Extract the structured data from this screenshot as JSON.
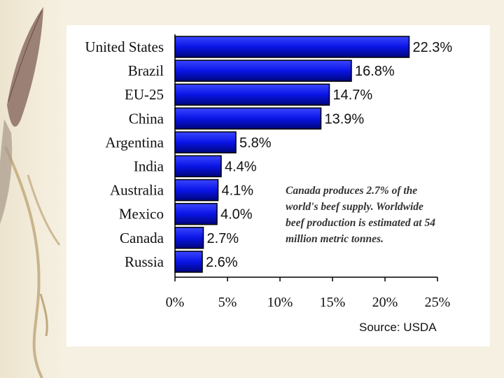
{
  "chart_data": {
    "type": "bar",
    "orientation": "horizontal",
    "categories": [
      "United States",
      "Brazil",
      "EU-25",
      "China",
      "Argentina",
      "India",
      "Australia",
      "Mexico",
      "Canada",
      "Russia"
    ],
    "values": [
      22.3,
      16.8,
      14.7,
      13.9,
      5.8,
      4.4,
      4.1,
      4.0,
      2.7,
      2.6
    ],
    "value_labels": [
      "22.3%",
      "16.8%",
      "14.7%",
      "13.9%",
      "5.8%",
      "4.4%",
      "4.1%",
      "4.0%",
      "2.7%",
      "2.6%"
    ],
    "xlim": [
      0,
      25
    ],
    "x_ticks": [
      0,
      5,
      10,
      15,
      20,
      25
    ],
    "x_tick_labels": [
      "0%",
      "5%",
      "10%",
      "15%",
      "20%",
      "25%"
    ],
    "bar_color": "#0a14e6",
    "title": "",
    "xlabel": "",
    "ylabel": ""
  },
  "annotation": {
    "lines": [
      "Canada produces 2.7% of the",
      "world's beef supply. Worldwide",
      "beef production is estimated at 54",
      "million metric tonnes."
    ]
  },
  "source": "Source: USDA"
}
